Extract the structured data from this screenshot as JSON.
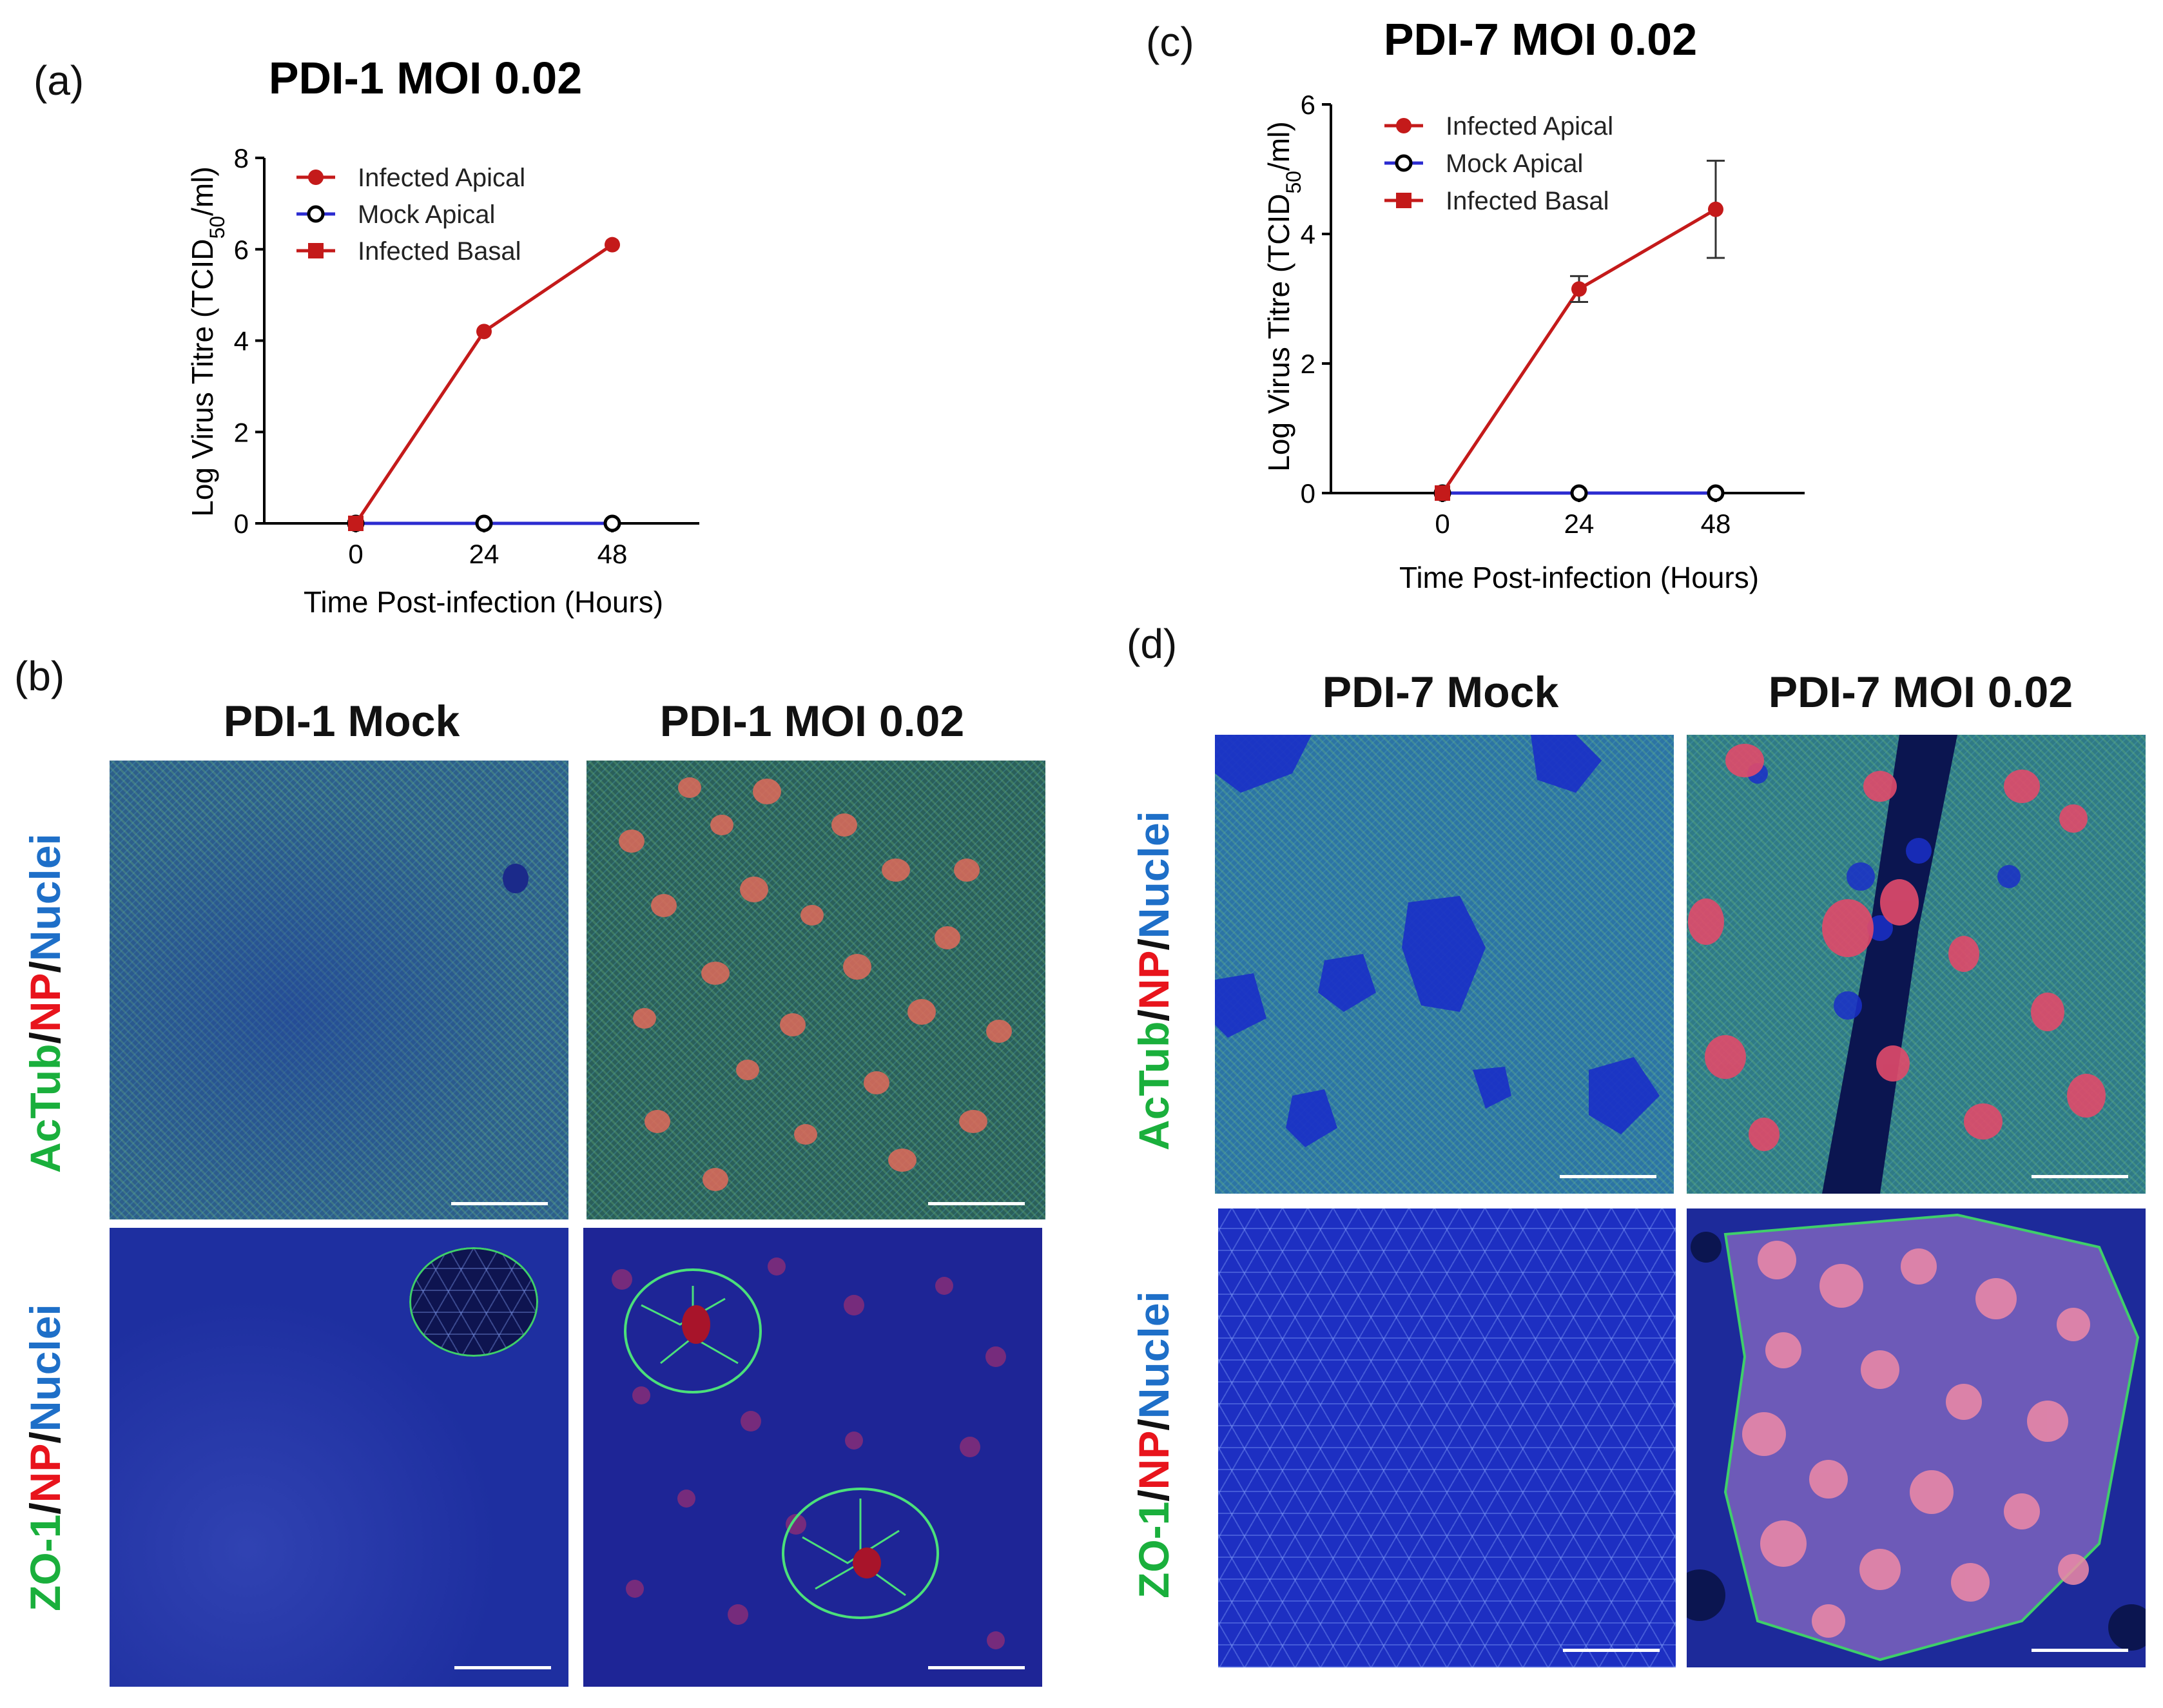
{
  "panels": {
    "a": {
      "letter": "(a)"
    },
    "b": {
      "letter": "(b)",
      "col_mock": "PDI-1 Mock",
      "col_infected": "PDI-1 MOI 0.02"
    },
    "c": {
      "letter": "(c)"
    },
    "d": {
      "letter": "(d)",
      "col_mock": "PDI-7 Mock",
      "col_infected": "PDI-7 MOI 0.02"
    }
  },
  "row_labels": {
    "row1": [
      {
        "text": "AcTub",
        "color": "#1aaf3c"
      },
      {
        "text": "/",
        "color": "#111111"
      },
      {
        "text": "NP",
        "color": "#e8141c"
      },
      {
        "text": "/",
        "color": "#111111"
      },
      {
        "text": "Nuclei",
        "color": "#1e6fc8"
      }
    ],
    "row2": [
      {
        "text": "ZO-1",
        "color": "#1aaf3c"
      },
      {
        "text": "/",
        "color": "#111111"
      },
      {
        "text": "NP",
        "color": "#e8141c"
      },
      {
        "text": "/",
        "color": "#111111"
      },
      {
        "text": "Nuclei",
        "color": "#1e6fc8"
      }
    ]
  },
  "colors": {
    "infected": "#c41a1a",
    "mock": "#2b2bd0",
    "axis": "#000000"
  },
  "chart_data": [
    {
      "type": "line",
      "title": "PDI-1 MOI 0.02",
      "xlabel": "Time Post-infection (Hours)",
      "ylabel": "Log Virus Titre (TCID50/ml)",
      "ylabel_main": "Log Virus Titre (TCID",
      "ylabel_sub": "50",
      "ylabel_end": "/ml)",
      "x": [
        0,
        24,
        48
      ],
      "xticks": [
        "0",
        "24",
        "48"
      ],
      "ylim": [
        0,
        8
      ],
      "yticks": [
        "0",
        "2",
        "4",
        "6",
        "8"
      ],
      "legend_position": "top-left",
      "series": [
        {
          "name": "Infected Apical",
          "marker": "circle-filled",
          "values": [
            0,
            4.2,
            6.1
          ]
        },
        {
          "name": "Mock Apical",
          "marker": "circle-open",
          "values": [
            0,
            0,
            0
          ]
        },
        {
          "name": "Infected Basal",
          "marker": "square-filled",
          "values": [
            0,
            null,
            null
          ]
        }
      ]
    },
    {
      "type": "line",
      "title": "PDI-7 MOI 0.02",
      "xlabel": "Time Post-infection (Hours)",
      "ylabel": "Log Virus Titre (TCID50/ml)",
      "ylabel_main": "Log Virus Titre (TCID",
      "ylabel_sub": "50",
      "ylabel_end": "/ml)",
      "x": [
        0,
        24,
        48
      ],
      "xticks": [
        "0",
        "24",
        "48"
      ],
      "ylim": [
        0,
        6
      ],
      "yticks": [
        "0",
        "2",
        "4",
        "6"
      ],
      "legend_position": "top-left",
      "series": [
        {
          "name": "Infected Apical",
          "marker": "circle-filled",
          "values": [
            0,
            3.15,
            4.38
          ],
          "error": [
            0,
            0.2,
            0.75
          ]
        },
        {
          "name": "Mock Apical",
          "marker": "circle-open",
          "values": [
            0,
            0,
            0
          ]
        },
        {
          "name": "Infected Basal",
          "marker": "square-filled",
          "values": [
            0,
            null,
            null
          ]
        }
      ]
    }
  ]
}
